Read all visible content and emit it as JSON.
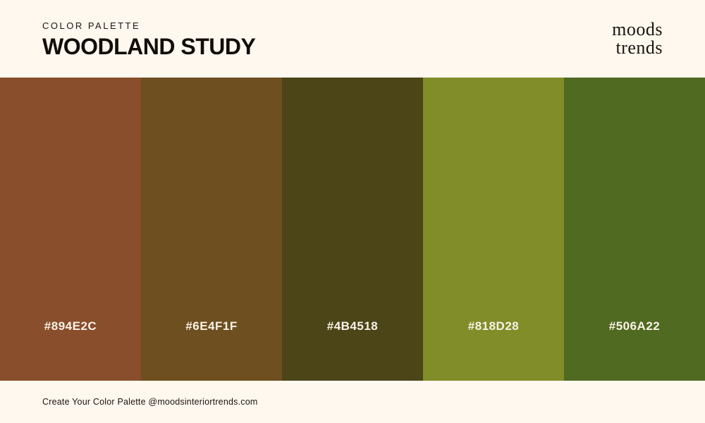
{
  "header": {
    "eyebrow": "COLOR PALETTE",
    "title": "WOODLAND STUDY",
    "logo_line1": "moods",
    "logo_line2": "trends"
  },
  "palette": {
    "swatches": [
      {
        "hex": "#894E2C"
      },
      {
        "hex": "#6E4F1F"
      },
      {
        "hex": "#4B4518"
      },
      {
        "hex": "#818D28"
      },
      {
        "hex": "#506A22"
      }
    ]
  },
  "footer": {
    "text": "Create Your Color Palette @moodsinteriortrends.com"
  },
  "colors": {
    "background": "#FFF8EF",
    "text_dark": "#1B1510",
    "hex_label_text": "#F8F1E7"
  }
}
